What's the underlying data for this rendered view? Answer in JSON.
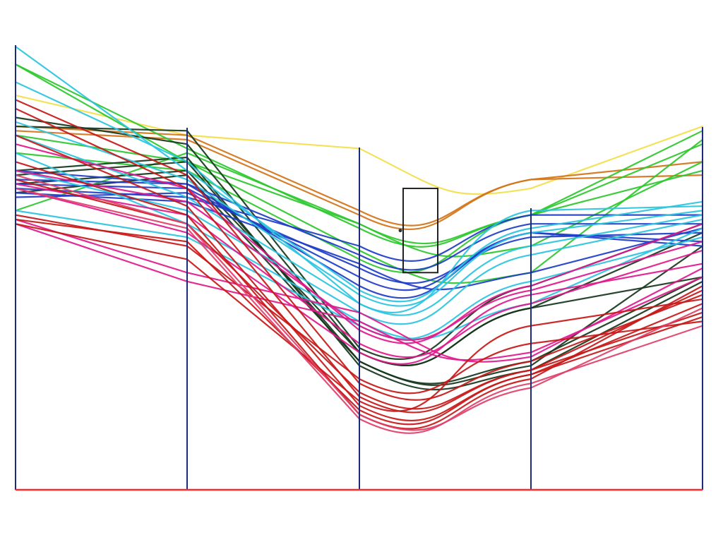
{
  "chart_data": {
    "type": "parallel_coordinates",
    "title": "",
    "axes": [
      "",
      "",
      "",
      "",
      ""
    ],
    "ylim": [
      0,
      100
    ],
    "colors": {
      "axis": "#1c2a7a",
      "baseline": "#ff2a2a",
      "brush": "#222222"
    },
    "brush": {
      "axis_index": 2.35,
      "range": [
        49,
        68
      ]
    },
    "series": [
      {
        "color": "#f2e04a",
        "values": [
          89,
          80,
          77,
          68,
          82
        ]
      },
      {
        "color": "#d27418",
        "values": [
          82,
          80,
          63,
          70,
          74
        ]
      },
      {
        "color": "#d27418",
        "values": [
          81,
          79,
          62,
          70,
          71
        ]
      },
      {
        "color": "#2cc82c",
        "values": [
          96,
          77,
          59,
          62,
          81
        ]
      },
      {
        "color": "#2cc82c",
        "values": [
          63,
          76,
          60,
          62,
          78
        ]
      },
      {
        "color": "#2cc82c",
        "values": [
          96,
          74,
          60,
          55,
          74
        ]
      },
      {
        "color": "#2cc82c",
        "values": [
          80,
          74,
          54,
          49,
          79
        ]
      },
      {
        "color": "#2cc82c",
        "values": [
          76,
          72,
          52,
          62,
          72
        ]
      },
      {
        "color": "#16361c",
        "values": [
          82,
          81,
          32,
          46,
          60
        ]
      },
      {
        "color": "#16361c",
        "values": [
          84,
          78,
          31,
          41,
          58
        ]
      },
      {
        "color": "#16361c",
        "values": [
          71,
          74,
          29,
          28,
          55
        ]
      },
      {
        "color": "#16361c",
        "values": [
          69,
          72,
          31,
          41,
          48
        ]
      },
      {
        "color": "#16361c",
        "values": [
          67,
          71,
          29,
          29,
          48
        ]
      },
      {
        "color": "#16361c",
        "values": [
          72,
          75,
          28,
          27,
          47
        ]
      },
      {
        "color": "#1e3cc8",
        "values": [
          68,
          66,
          55,
          62,
          62
        ]
      },
      {
        "color": "#1e3cc8",
        "values": [
          70,
          69,
          53,
          60,
          60
        ]
      },
      {
        "color": "#1e3cc8",
        "values": [
          66,
          67,
          50,
          57,
          58
        ]
      },
      {
        "color": "#1e3cc8",
        "values": [
          69,
          68,
          48,
          58,
          56
        ]
      },
      {
        "color": "#1e3cc8",
        "values": [
          72,
          69,
          46,
          58,
          55
        ]
      },
      {
        "color": "#1e3cc8",
        "values": [
          67,
          65,
          51,
          49,
          59
        ]
      },
      {
        "color": "#2ac4e0",
        "values": [
          100,
          72,
          45,
          59,
          65
        ]
      },
      {
        "color": "#2ac4e0",
        "values": [
          92,
          74,
          42,
          63,
          64
        ]
      },
      {
        "color": "#2ac4e0",
        "values": [
          83,
          70,
          44,
          58,
          63
        ]
      },
      {
        "color": "#2ac4e0",
        "values": [
          80,
          66,
          42,
          55,
          62
        ]
      },
      {
        "color": "#2ac4e0",
        "values": [
          72,
          63,
          40,
          53,
          61
        ]
      },
      {
        "color": "#2ac4e0",
        "values": [
          76,
          60,
          38,
          42,
          59
        ]
      },
      {
        "color": "#2ac4e0",
        "values": [
          63,
          57,
          37,
          47,
          57
        ]
      },
      {
        "color": "#e0198c",
        "values": [
          78,
          68,
          36,
          46,
          60
        ]
      },
      {
        "color": "#e0198c",
        "values": [
          72,
          65,
          37,
          45,
          56
        ]
      },
      {
        "color": "#e0198c",
        "values": [
          69,
          62,
          33,
          42,
          54
        ]
      },
      {
        "color": "#e0198c",
        "values": [
          68,
          58,
          31,
          44,
          51
        ]
      },
      {
        "color": "#e0198c",
        "values": [
          61,
          49,
          40,
          30,
          50
        ]
      },
      {
        "color": "#e0198c",
        "values": [
          60,
          47,
          38,
          31,
          48
        ]
      },
      {
        "color": "#c71818",
        "values": [
          88,
          71,
          24,
          29,
          44
        ]
      },
      {
        "color": "#c71818",
        "values": [
          86,
          68,
          21,
          27,
          45
        ]
      },
      {
        "color": "#c71818",
        "values": [
          80,
          64,
          19,
          26,
          42
        ]
      },
      {
        "color": "#c71818",
        "values": [
          74,
          62,
          17,
          25,
          46
        ]
      },
      {
        "color": "#c71818",
        "values": [
          70,
          60,
          22,
          27,
          40
        ]
      },
      {
        "color": "#c71818",
        "values": [
          61,
          56,
          18,
          26,
          39
        ]
      },
      {
        "color": "#c71818",
        "values": [
          60,
          52,
          20,
          37,
          43
        ]
      },
      {
        "color": "#c71818",
        "values": [
          62,
          55,
          25,
          33,
          38
        ]
      },
      {
        "color": "#e0406a",
        "values": [
          71,
          60,
          17,
          23,
          41
        ]
      },
      {
        "color": "#e0406a",
        "values": [
          68,
          59,
          16,
          24,
          37
        ]
      }
    ]
  }
}
